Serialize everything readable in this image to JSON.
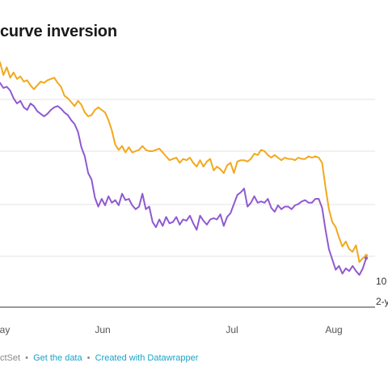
{
  "title": "curve inversion",
  "footer": {
    "source": "ctSet",
    "sep": "•",
    "get_data": "Get the data",
    "created_with": "Created with Datawrapper"
  },
  "chart_data": {
    "type": "line",
    "title": "curve inversion",
    "xlabel": "",
    "ylabel": "",
    "x_tick_labels": [
      "ay",
      "Jun",
      "Jul",
      "Aug"
    ],
    "grid": true,
    "legend": "direct labels at right end of lines",
    "series": [
      {
        "name": "10",
        "color": "#f2a81d",
        "end_label": "10",
        "values": [
          90,
          80,
          86,
          78,
          82,
          77,
          79,
          75,
          76,
          72,
          69,
          72,
          75,
          74,
          76,
          77,
          78,
          74,
          71,
          64,
          62,
          59,
          56,
          60,
          57,
          51,
          48,
          49,
          53,
          55,
          53,
          51,
          45,
          37,
          26,
          22,
          25,
          20,
          24,
          20,
          21,
          22,
          25,
          22,
          21,
          21,
          22,
          23,
          20,
          17,
          14,
          15,
          16,
          12,
          15,
          14,
          16,
          12,
          9,
          14,
          9,
          13,
          15,
          6,
          9,
          7,
          4,
          10,
          12,
          4,
          13,
          14,
          14,
          13,
          15,
          19,
          18,
          22,
          21,
          18,
          16,
          18,
          16,
          14,
          16,
          15,
          15,
          14,
          16,
          15,
          15,
          17,
          16,
          17,
          16,
          12,
          -7,
          -24,
          -34,
          -38,
          -46,
          -53,
          -49,
          -55,
          -57,
          -52,
          -65,
          -62,
          -60
        ]
      },
      {
        "name": "2-y",
        "color": "#8f5ad0",
        "end_label": "2-y",
        "values": [
          74,
          70,
          71,
          68,
          62,
          58,
          60,
          55,
          53,
          58,
          56,
          52,
          50,
          48,
          50,
          53,
          55,
          56,
          54,
          51,
          49,
          45,
          42,
          36,
          24,
          17,
          4,
          -1,
          -15,
          -22,
          -16,
          -21,
          -14,
          -19,
          -17,
          -21,
          -12,
          -17,
          -16,
          -21,
          -24,
          -22,
          -12,
          -24,
          -22,
          -34,
          -38,
          -32,
          -37,
          -30,
          -35,
          -34,
          -30,
          -36,
          -32,
          -33,
          -29,
          -35,
          -40,
          -29,
          -33,
          -36,
          -32,
          -31,
          -32,
          -28,
          -37,
          -30,
          -27,
          -20,
          -13,
          -11,
          -8,
          -22,
          -19,
          -14,
          -19,
          -18,
          -19,
          -16,
          -23,
          -26,
          -21,
          -24,
          -22,
          -22,
          -24,
          -21,
          -20,
          -18,
          -17,
          -19,
          -19,
          -16,
          -16,
          -23,
          -40,
          -55,
          -63,
          -71,
          -68,
          -74,
          -70,
          -72,
          -68,
          -72,
          -75,
          -70,
          -62
        ]
      }
    ]
  }
}
